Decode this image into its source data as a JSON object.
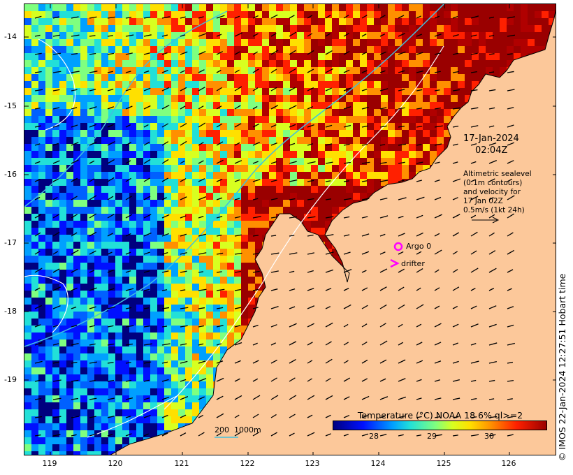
{
  "map": {
    "date": "17-Jan-2024",
    "time": "02:04Z",
    "altimetry_lines": [
      "Altimetric sealevel",
      "(0.1m contours)",
      "and velocity for",
      "17 Jan 02Z",
      "0.5m/s (1kt 24h)"
    ],
    "legend_argo": "Argo 0",
    "legend_drifter": "drifter",
    "scale_bar": "200  1000m",
    "credit": "© IMOS 22-Jan-2024 12:27:51 Hobart time",
    "lat_labels": [
      "-14",
      "-15",
      "-16",
      "-17",
      "-18",
      "-19"
    ],
    "lon_labels": [
      "119",
      "120",
      "121",
      "122",
      "123",
      "124",
      "125",
      "126"
    ]
  },
  "colorbar": {
    "title": "Temperature (°C) NOAA 18 6% ql>=2",
    "ticks": [
      "28",
      "29",
      "30"
    ]
  },
  "colors": {
    "land": "#fcc89a",
    "argo_marker": "#ff00ff",
    "drifter_marker": "#ff00ff",
    "contour": "#ffffff",
    "isobath": "#40c0e0"
  }
}
